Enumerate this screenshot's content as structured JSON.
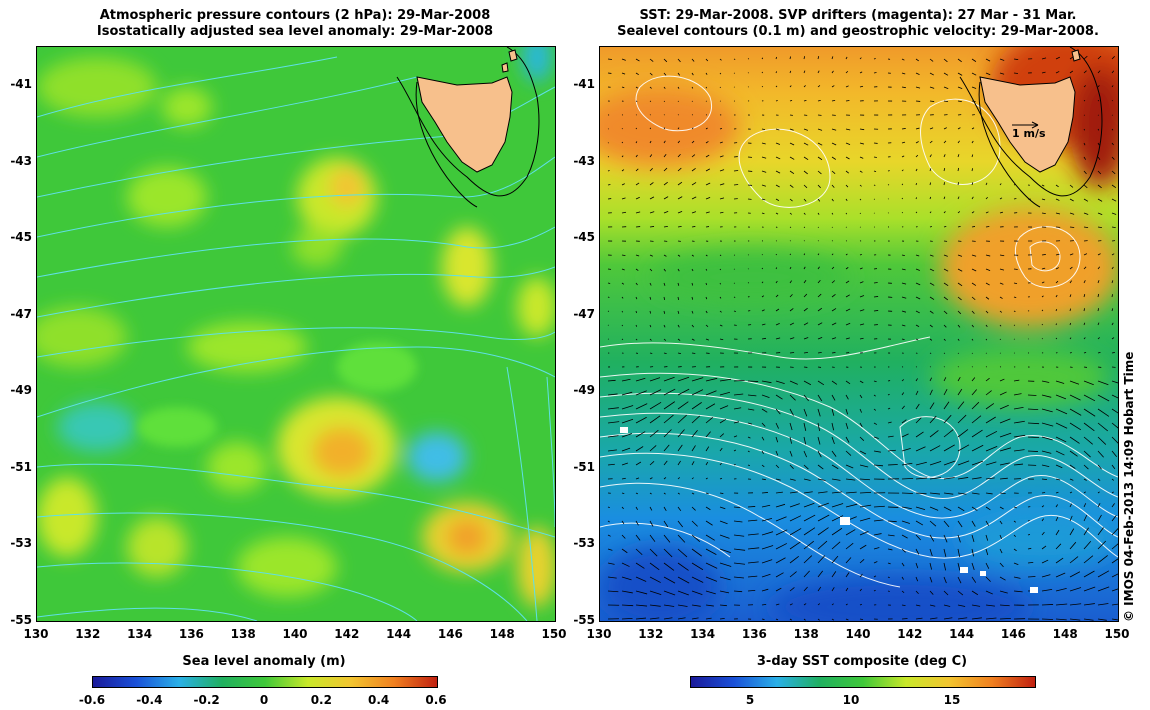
{
  "left_map": {
    "title_line1": "Atmospheric pressure contours (2 hPa): 29-Mar-2008",
    "title_line2": "Isostatically adjusted sea level anomaly: 29-Mar-2008",
    "colorbar_label": "Sea level anomaly (m)",
    "colorbar_ticks": [
      "-0.6",
      "-0.4",
      "-0.2",
      "0",
      "0.2",
      "0.4",
      "0.6"
    ],
    "colorbar_range": [
      -0.6,
      0.6
    ]
  },
  "right_map": {
    "title_line1": "SST: 29-Mar-2008. SVP drifters (magenta): 27 Mar - 31 Mar.",
    "title_line2": "Sealevel contours (0.1 m) and geostrophic velocity: 29-Mar-2008.",
    "colorbar_label": "3-day SST composite (deg C)",
    "colorbar_ticks": [
      "5",
      "10",
      "15"
    ],
    "velocity_scale_label": "1 m/s"
  },
  "axes": {
    "lon_ticks": [
      "130",
      "132",
      "134",
      "136",
      "138",
      "140",
      "142",
      "144",
      "146",
      "148",
      "150"
    ],
    "lat_ticks": [
      "-41",
      "-43",
      "-45",
      "-47",
      "-49",
      "-51",
      "-53",
      "-55"
    ],
    "lon_range": [
      130,
      150
    ],
    "lat_range": [
      -55,
      -40
    ]
  },
  "credit": "© IMOS 04-Feb-2013 14:09 Hobart Time",
  "colors": {
    "land": "#f7c08c",
    "pressure_contour": "#5fe0e6",
    "sla_contour": "#ffffff",
    "sst_contour": "#ffffff",
    "vector": "#000000"
  }
}
